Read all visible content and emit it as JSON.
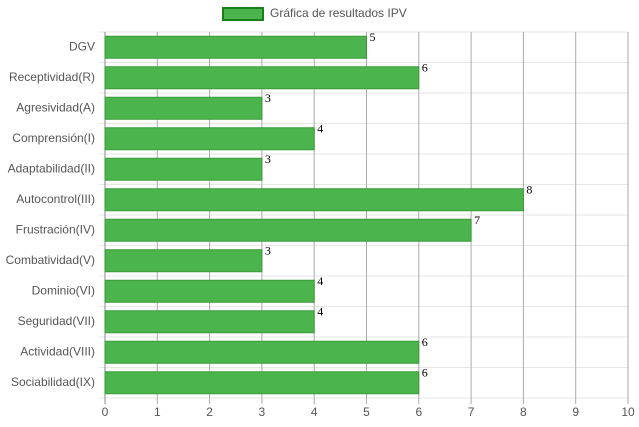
{
  "chart_data": {
    "type": "hbar",
    "categories": [
      "DGV",
      "Receptividad(R)",
      "Agresividad(A)",
      "Comprensión(I)",
      "Adaptabilidad(II)",
      "Autocontrol(III)",
      "Frustración(IV)",
      "Combatividad(V)",
      "Dominio(VI)",
      "Seguridad(VII)",
      "Actividad(VIII)",
      "Sociabilidad(IX)"
    ],
    "series": [
      {
        "name": "Gráfica de resultados IPV",
        "color": "#4cb44c",
        "values": [
          5,
          6,
          3,
          4,
          3,
          8,
          7,
          3,
          4,
          4,
          6,
          6
        ]
      }
    ],
    "xlim": [
      0,
      10
    ],
    "xticks": [
      0,
      1,
      2,
      3,
      4,
      5,
      6,
      7,
      8,
      9,
      10
    ],
    "grid": true,
    "legend": "top"
  }
}
